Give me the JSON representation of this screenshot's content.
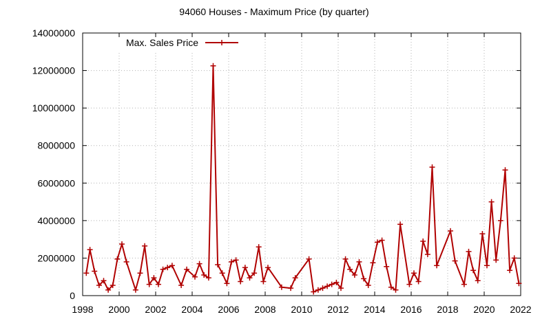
{
  "chart_data": {
    "type": "line",
    "title": "94060 Houses - Maximum Price (by quarter)",
    "xlabel": "",
    "ylabel": "",
    "xlim": [
      1998,
      2022
    ],
    "ylim": [
      0,
      14000000
    ],
    "x_ticks": [
      1998,
      2000,
      2002,
      2004,
      2006,
      2008,
      2010,
      2012,
      2014,
      2016,
      2018,
      2020,
      2022
    ],
    "y_ticks": [
      0,
      2000000,
      4000000,
      6000000,
      8000000,
      10000000,
      12000000,
      14000000
    ],
    "grid": "dotted",
    "legend_position": "top-left",
    "series": [
      {
        "name": "Max. Sales Price",
        "color": "#b00000",
        "marker": "plus",
        "points": [
          [
            1998.2,
            1200000
          ],
          [
            1998.4,
            2450000
          ],
          [
            1998.65,
            1300000
          ],
          [
            1998.9,
            550000
          ],
          [
            1999.15,
            800000
          ],
          [
            1999.4,
            300000
          ],
          [
            1999.65,
            550000
          ],
          [
            1999.9,
            1950000
          ],
          [
            2000.15,
            2750000
          ],
          [
            2000.4,
            1800000
          ],
          [
            2000.9,
            300000
          ],
          [
            2001.15,
            1200000
          ],
          [
            2001.4,
            2650000
          ],
          [
            2001.65,
            600000
          ],
          [
            2001.9,
            950000
          ],
          [
            2002.15,
            600000
          ],
          [
            2002.4,
            1400000
          ],
          [
            2002.65,
            1500000
          ],
          [
            2002.9,
            1600000
          ],
          [
            2003.4,
            550000
          ],
          [
            2003.7,
            1400000
          ],
          [
            2004.15,
            1000000
          ],
          [
            2004.4,
            1700000
          ],
          [
            2004.65,
            1100000
          ],
          [
            2004.9,
            950000
          ],
          [
            2005.15,
            12250000
          ],
          [
            2005.4,
            1650000
          ],
          [
            2005.65,
            1200000
          ],
          [
            2005.9,
            650000
          ],
          [
            2006.15,
            1800000
          ],
          [
            2006.4,
            1900000
          ],
          [
            2006.65,
            750000
          ],
          [
            2006.9,
            1500000
          ],
          [
            2007.15,
            950000
          ],
          [
            2007.4,
            1200000
          ],
          [
            2007.65,
            2600000
          ],
          [
            2007.9,
            750000
          ],
          [
            2008.15,
            1500000
          ],
          [
            2008.9,
            450000
          ],
          [
            2009.4,
            400000
          ],
          [
            2009.65,
            950000
          ],
          [
            2010.4,
            1950000
          ],
          [
            2010.65,
            200000
          ],
          [
            2010.9,
            300000
          ],
          [
            2011.15,
            400000
          ],
          [
            2011.4,
            500000
          ],
          [
            2011.65,
            600000
          ],
          [
            2011.9,
            700000
          ],
          [
            2012.15,
            400000
          ],
          [
            2012.4,
            1950000
          ],
          [
            2012.65,
            1400000
          ],
          [
            2012.9,
            1100000
          ],
          [
            2013.15,
            1800000
          ],
          [
            2013.4,
            900000
          ],
          [
            2013.65,
            550000
          ],
          [
            2013.9,
            1750000
          ],
          [
            2014.15,
            2850000
          ],
          [
            2014.4,
            2950000
          ],
          [
            2014.65,
            1550000
          ],
          [
            2014.9,
            450000
          ],
          [
            2015.15,
            300000
          ],
          [
            2015.4,
            3800000
          ],
          [
            2015.9,
            600000
          ],
          [
            2016.15,
            1200000
          ],
          [
            2016.4,
            750000
          ],
          [
            2016.65,
            2900000
          ],
          [
            2016.9,
            2200000
          ],
          [
            2017.15,
            6850000
          ],
          [
            2017.4,
            1600000
          ],
          [
            2018.15,
            3450000
          ],
          [
            2018.4,
            1850000
          ],
          [
            2018.9,
            600000
          ],
          [
            2019.15,
            2350000
          ],
          [
            2019.4,
            1350000
          ],
          [
            2019.65,
            800000
          ],
          [
            2019.9,
            3300000
          ],
          [
            2020.15,
            1600000
          ],
          [
            2020.4,
            5000000
          ],
          [
            2020.65,
            1900000
          ],
          [
            2020.9,
            4000000
          ],
          [
            2021.15,
            6700000
          ],
          [
            2021.4,
            1350000
          ],
          [
            2021.65,
            2000000
          ],
          [
            2021.9,
            650000
          ]
        ]
      }
    ]
  }
}
